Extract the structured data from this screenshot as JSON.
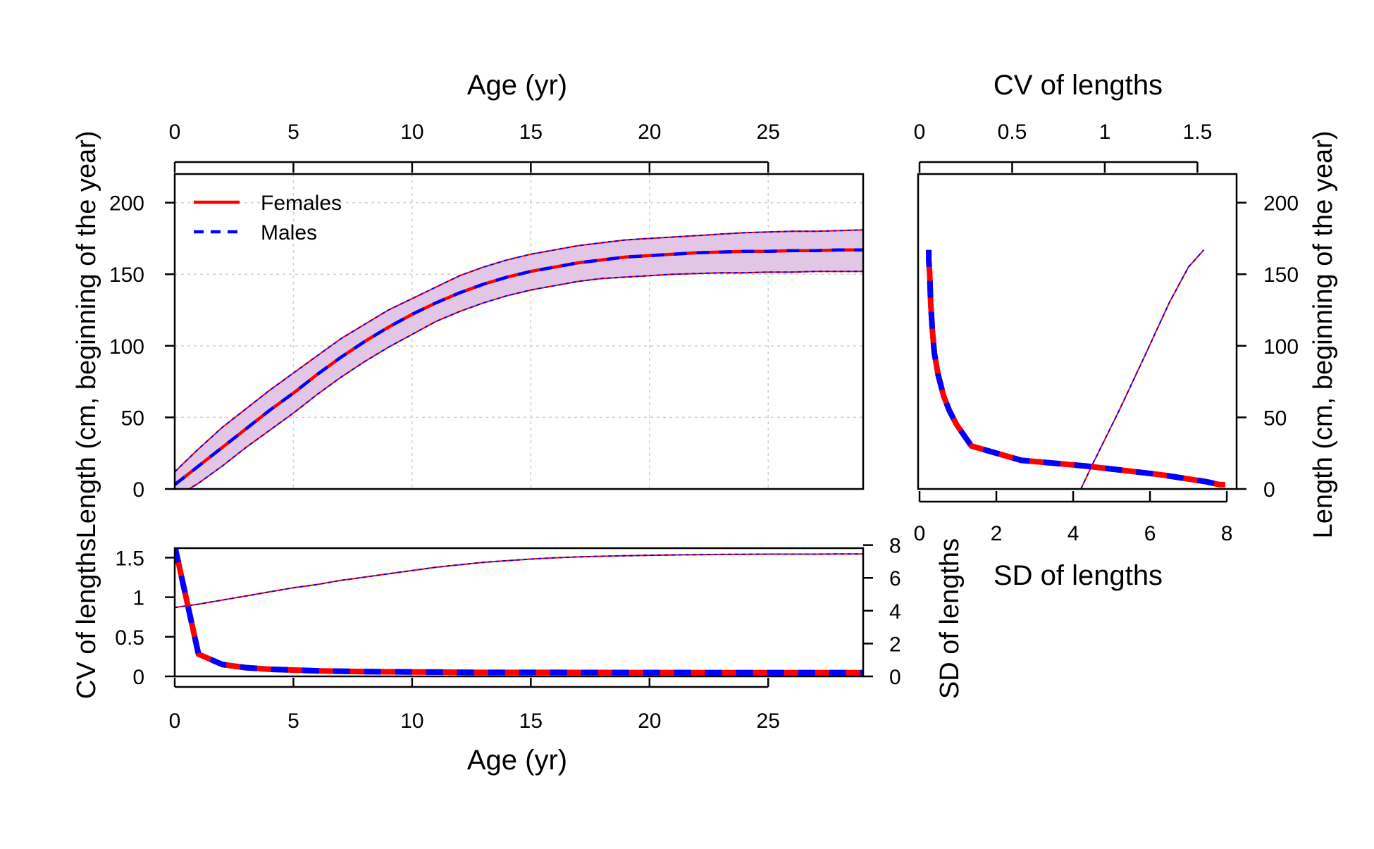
{
  "chart_data": [
    {
      "id": "growth",
      "type": "line",
      "title": "",
      "xlabel": "Age (yr)",
      "ylabel": "Length (cm, beginning of the year)",
      "xlim": [
        0,
        29
      ],
      "ylim": [
        0,
        220
      ],
      "grid": true,
      "legend_position": "top-left",
      "x_ticks": [
        "0",
        "5",
        "10",
        "15",
        "20",
        "25"
      ],
      "y_ticks": [
        "0",
        "50",
        "100",
        "150",
        "200"
      ],
      "x": [
        0,
        1,
        2,
        3,
        4,
        5,
        6,
        7,
        8,
        9,
        10,
        11,
        12,
        13,
        14,
        15,
        16,
        17,
        18,
        19,
        20,
        21,
        22,
        23,
        24,
        25,
        26,
        27,
        28,
        29
      ],
      "series": [
        {
          "name": "Females",
          "color": "#FF0000",
          "line": "solid",
          "values": [
            3,
            16,
            29,
            42,
            55,
            67,
            80,
            92,
            103,
            113,
            122,
            130,
            137,
            143,
            148,
            152,
            155,
            158,
            160,
            162,
            163,
            164,
            165,
            165.5,
            166,
            166,
            166.5,
            166.5,
            167,
            167
          ]
        },
        {
          "name": "Males",
          "color": "#0000FF",
          "line": "dashed",
          "values": [
            3,
            16,
            29,
            42,
            55,
            67,
            80,
            92,
            103,
            113,
            122,
            130,
            137,
            143,
            148,
            152,
            155,
            158,
            160,
            162,
            163,
            164,
            165,
            165.5,
            166,
            166,
            166.5,
            166.5,
            167,
            167
          ]
        }
      ],
      "band": {
        "color": "#E2C6E6",
        "upper": [
          12,
          28,
          43,
          56,
          69,
          81,
          93,
          105,
          115,
          125,
          133,
          141,
          149,
          155,
          160,
          164,
          167,
          170,
          172,
          174,
          175,
          176,
          177,
          178,
          179,
          179.5,
          180,
          180,
          180.5,
          181
        ],
        "lower": [
          -6,
          4,
          16,
          29,
          41,
          53,
          66,
          78,
          89,
          99,
          108,
          117,
          124,
          130,
          135,
          139,
          142,
          145,
          147,
          148,
          149,
          150,
          150.5,
          151,
          151,
          151.5,
          151.5,
          152,
          152,
          152
        ]
      }
    },
    {
      "id": "cv-sd-vs-length",
      "type": "line",
      "title": "",
      "xlabel": "SD of lengths",
      "x2label": "CV of lengths",
      "ylabel": "Length (cm, beginning of the year)",
      "xlim": [
        0,
        8.2
      ],
      "x2lim": [
        0,
        1.7
      ],
      "ylim": [
        0,
        220
      ],
      "x_ticks": [
        "0",
        "2",
        "4",
        "6",
        "8"
      ],
      "x2_ticks": [
        "0",
        "0.5",
        "1",
        "1.5"
      ],
      "y_ticks": [
        "0",
        "50",
        "100",
        "150",
        "200"
      ],
      "cv_series": {
        "name": "CV",
        "colors": [
          "#FF0000",
          "#0000FF"
        ],
        "cv": [
          0.05,
          0.05,
          0.055,
          0.06,
          0.07,
          0.08,
          0.1,
          0.13,
          0.16,
          0.2,
          0.28,
          0.55,
          0.9,
          1.3,
          1.55,
          1.62,
          1.65
        ],
        "length": [
          167,
          160,
          150,
          130,
          110,
          95,
          80,
          65,
          55,
          45,
          30,
          20,
          16,
          10,
          5,
          3,
          3
        ]
      },
      "sd_series": {
        "name": "SD",
        "colors": [
          "#FF0000",
          "#0000FF"
        ],
        "sd": [
          4.2,
          4.5,
          5.2,
          5.9,
          6.5,
          7.0,
          7.4
        ],
        "length": [
          0,
          17,
          55,
          95,
          130,
          155,
          167
        ]
      }
    },
    {
      "id": "cv-sd-vs-age",
      "type": "line",
      "title": "",
      "xlabel": "Age (yr)",
      "ylabel": "CV of lengths",
      "y2label": "SD of lengths",
      "xlim": [
        0,
        29
      ],
      "ylim": [
        0,
        1.7
      ],
      "y2lim": [
        0,
        8.2
      ],
      "x_ticks": [
        "0",
        "5",
        "10",
        "15",
        "20",
        "25"
      ],
      "y_ticks": [
        "0",
        "0.5",
        "1",
        "1.5"
      ],
      "y2_ticks": [
        "0",
        "2",
        "4",
        "6",
        "8"
      ],
      "x": [
        0,
        1,
        2,
        3,
        4,
        5,
        6,
        7,
        8,
        9,
        10,
        11,
        12,
        13,
        14,
        15,
        16,
        17,
        18,
        19,
        20,
        21,
        22,
        23,
        24,
        25,
        26,
        27,
        28,
        29
      ],
      "cv": [
        1.65,
        0.28,
        0.15,
        0.11,
        0.09,
        0.08,
        0.07,
        0.065,
        0.06,
        0.058,
        0.056,
        0.054,
        0.052,
        0.05,
        0.05,
        0.05,
        0.05,
        0.049,
        0.049,
        0.048,
        0.048,
        0.048,
        0.047,
        0.047,
        0.047,
        0.047,
        0.047,
        0.046,
        0.046,
        0.046
      ],
      "sd": [
        4.2,
        4.4,
        4.65,
        4.9,
        5.15,
        5.4,
        5.6,
        5.85,
        6.05,
        6.25,
        6.45,
        6.65,
        6.8,
        6.95,
        7.05,
        7.15,
        7.22,
        7.28,
        7.32,
        7.35,
        7.38,
        7.4,
        7.42,
        7.43,
        7.44,
        7.45,
        7.45,
        7.45,
        7.46,
        7.46
      ],
      "colors": {
        "females": "#FF0000",
        "males": "#0000FF"
      }
    }
  ]
}
